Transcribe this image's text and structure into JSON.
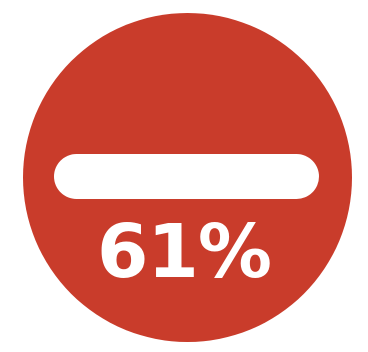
{
  "badge": {
    "color": "#c93c2b",
    "icon": "minus-icon",
    "value_text": "61%"
  }
}
